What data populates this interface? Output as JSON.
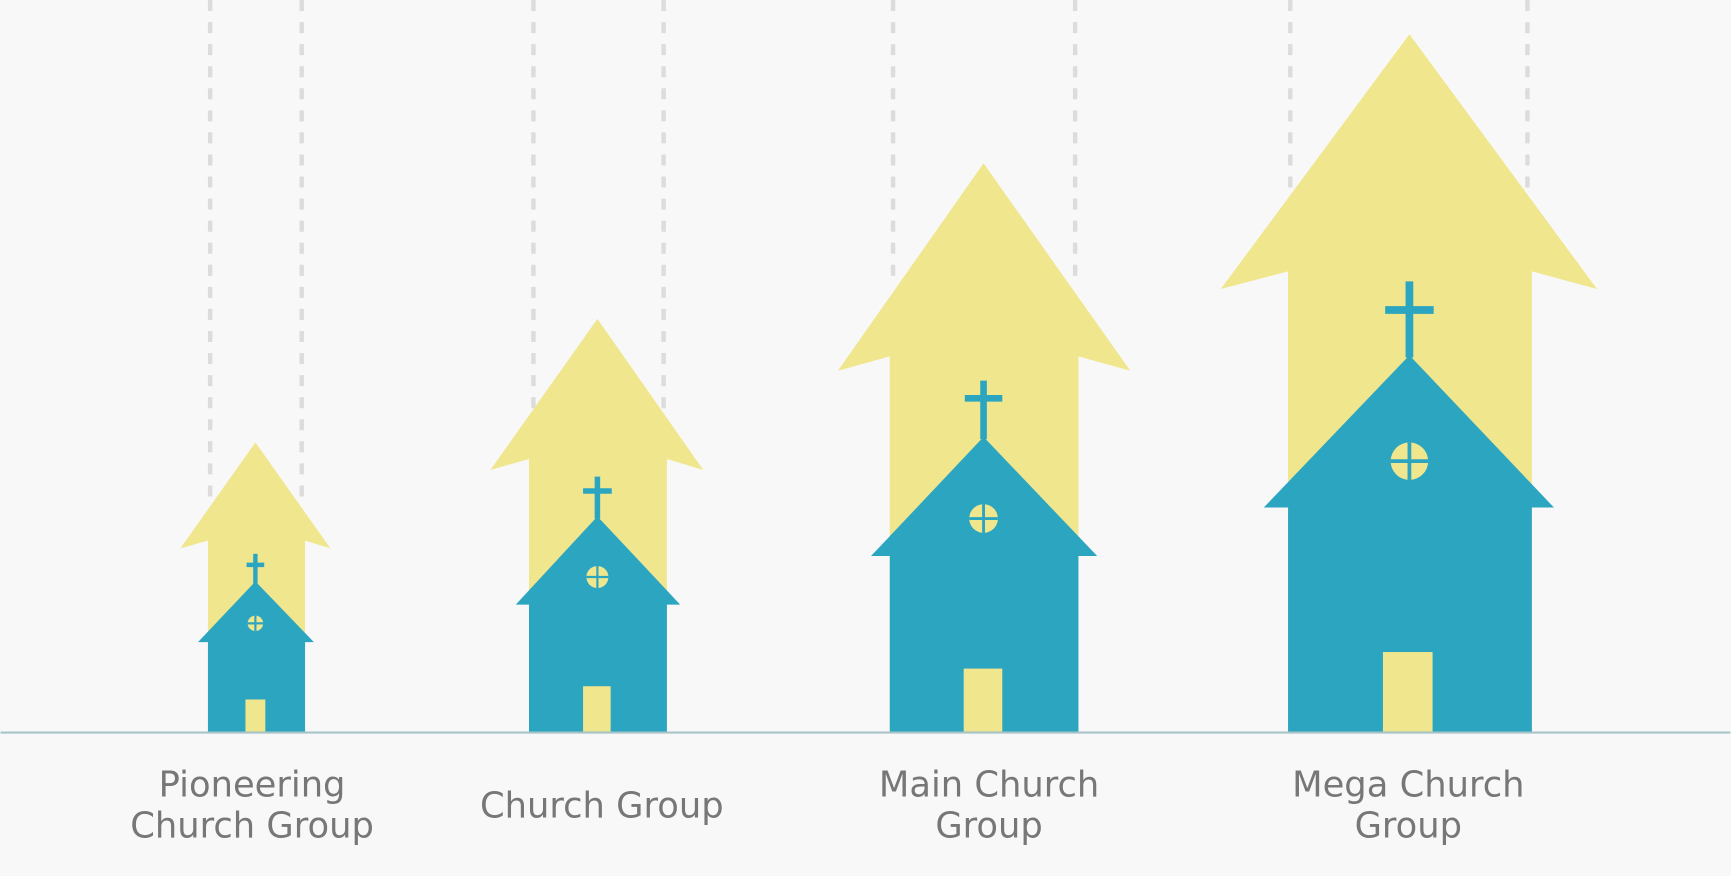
{
  "groups": [
    {
      "label_lines": [
        "Pioneering",
        "Church Group"
      ]
    },
    {
      "label_lines": [
        "Church Group"
      ]
    },
    {
      "label_lines": [
        "Main Church",
        "Group"
      ]
    },
    {
      "label_lines": [
        "Mega Church",
        "Group"
      ]
    }
  ]
}
